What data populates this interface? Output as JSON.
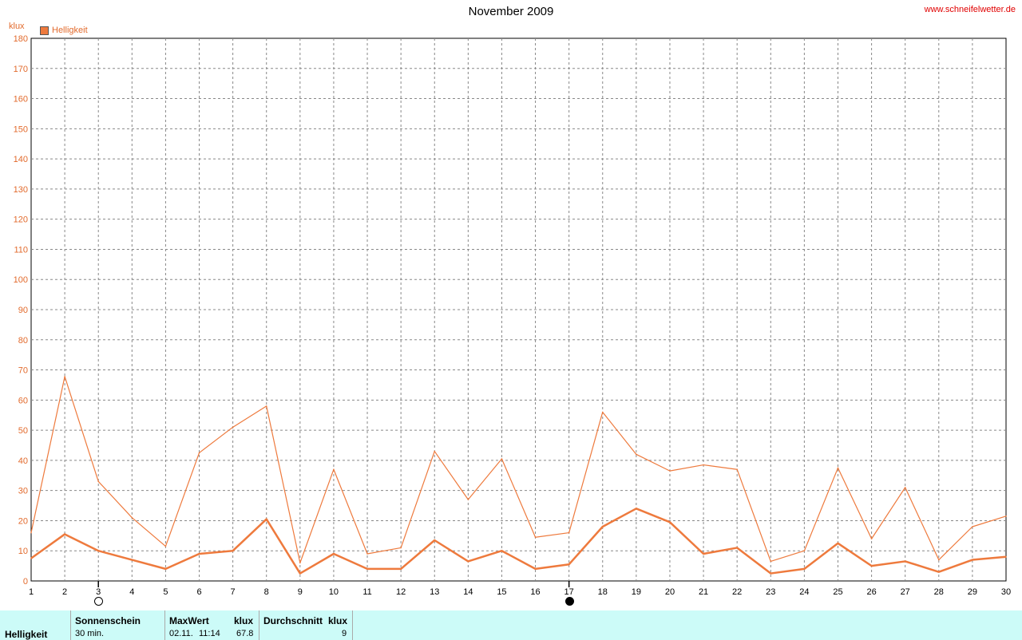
{
  "header": {
    "title": "November 2009",
    "site": "www.schneifelwetter.de",
    "unit": "klux",
    "legend_label": "Helligkeit"
  },
  "colors": {
    "series": "#ee7a3d",
    "text": "#e26a2c",
    "footer_bg": "#ccfbf8"
  },
  "moon_icons": {
    "full": "full-moon-icon",
    "new": "new-moon-icon"
  },
  "chart_data": {
    "type": "line",
    "title": "November 2009",
    "ylabel": "klux",
    "ylim": [
      0,
      180
    ],
    "yticks": [
      0,
      10,
      20,
      30,
      40,
      50,
      60,
      70,
      80,
      90,
      100,
      110,
      120,
      130,
      140,
      150,
      160,
      170,
      180
    ],
    "x": [
      1,
      2,
      3,
      4,
      5,
      6,
      7,
      8,
      9,
      10,
      11,
      12,
      13,
      14,
      15,
      16,
      17,
      18,
      19,
      20,
      21,
      22,
      23,
      24,
      25,
      26,
      27,
      28,
      29,
      30
    ],
    "grid": true,
    "legend_position": "top-left",
    "series": [
      {
        "name": "Helligkeit",
        "role": "max",
        "values": [
          16,
          67.8,
          33,
          21,
          11.5,
          42.5,
          51,
          58,
          6,
          37,
          9,
          11,
          43,
          27,
          40.5,
          14.5,
          16,
          56,
          42,
          36.5,
          38.5,
          37,
          6.5,
          10,
          37.5,
          14,
          31,
          7,
          18,
          21.5
        ]
      },
      {
        "name": "Helligkeit",
        "role": "avg",
        "values": [
          7.5,
          15.5,
          10,
          7,
          4,
          9,
          10,
          20.5,
          2.5,
          9,
          4,
          4,
          13.5,
          6.5,
          10,
          4,
          5.5,
          18,
          24,
          19.5,
          9,
          11,
          2.5,
          4,
          12.5,
          5,
          6.5,
          3,
          7,
          8
        ]
      }
    ],
    "moon_phases": [
      {
        "day": 3,
        "phase": "full"
      },
      {
        "day": 17,
        "phase": "new"
      }
    ]
  },
  "footer": {
    "row_label": "Helligkeit",
    "sunshine_label": "Sonnenschein",
    "sunshine_value": "30 min.",
    "max_label": "MaxWert",
    "max_unit": "klux",
    "max_date": "02.11.",
    "max_time": "11:14",
    "max_value": "67.8",
    "avg_label": "Durchschnitt",
    "avg_unit": "klux",
    "avg_value": "9"
  }
}
